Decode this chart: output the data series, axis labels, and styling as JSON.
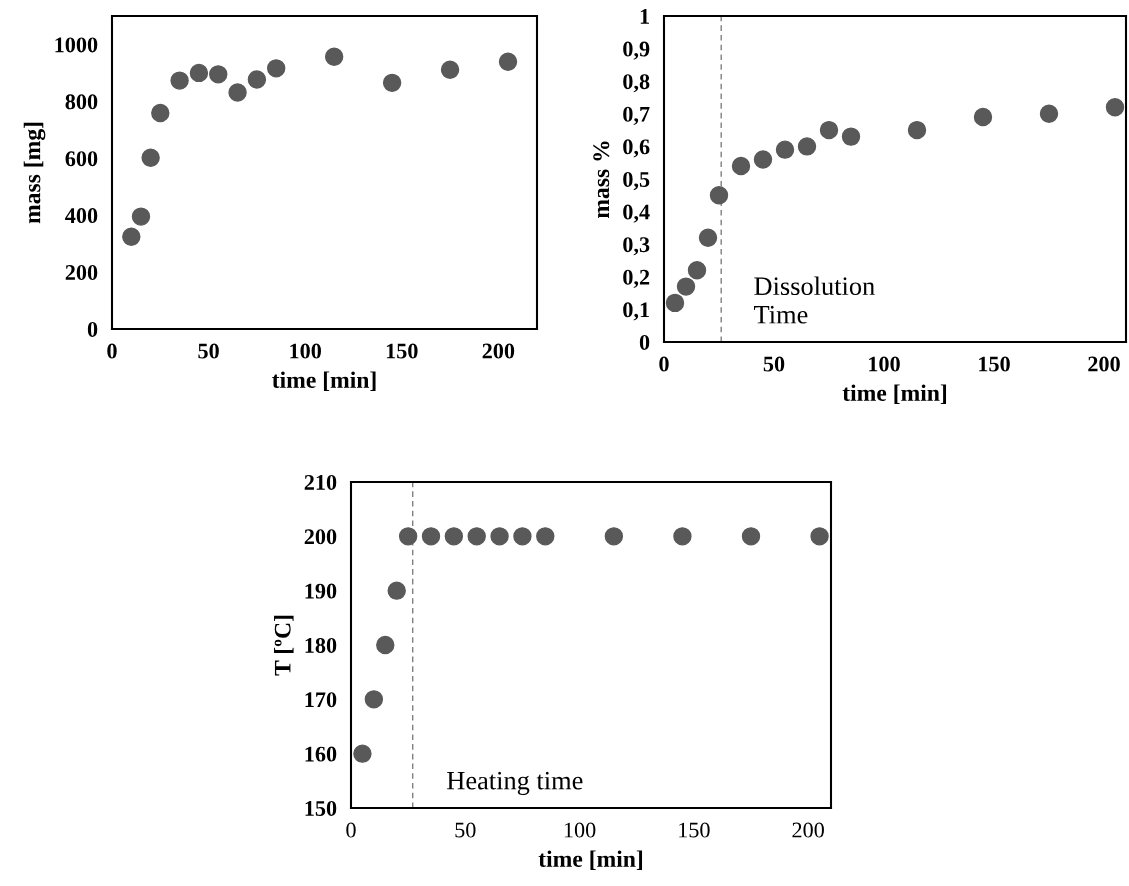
{
  "chart_data": [
    {
      "type": "scatter",
      "xlabel": "time [min]",
      "ylabel": "mass [mg]",
      "xlim": [
        0,
        220
      ],
      "ylim": [
        0,
        1100
      ],
      "xticks": [
        0,
        50,
        100,
        150,
        200
      ],
      "yticks": [
        0,
        200,
        400,
        600,
        800,
        1000
      ],
      "grid": false,
      "marker": "circle",
      "x": [
        10,
        15,
        20,
        25,
        35,
        45,
        55,
        65,
        75,
        85,
        115,
        145,
        175,
        205
      ],
      "series": [
        {
          "color": "#595959",
          "values": [
            324,
            395,
            602,
            759,
            873,
            900,
            895,
            831,
            877,
            916,
            957,
            865,
            911,
            939
          ]
        }
      ]
    },
    {
      "type": "scatter",
      "xlabel": "time [min]",
      "ylabel": "mass %",
      "xlim": [
        0,
        210
      ],
      "ylim": [
        0,
        1
      ],
      "xticks": [
        0,
        50,
        100,
        150,
        200
      ],
      "yticks": [
        0,
        {
          "value": 0.1,
          "label": "0,1"
        },
        {
          "value": 0.2,
          "label": "0,2"
        },
        {
          "value": 0.3,
          "label": "0,3"
        },
        {
          "value": 0.4,
          "label": "0,4"
        },
        {
          "value": 0.5,
          "label": "0,5"
        },
        {
          "value": 0.6,
          "label": "0,6"
        },
        {
          "value": 0.7,
          "label": "0,7"
        },
        {
          "value": 0.8,
          "label": "0,8"
        },
        {
          "value": 0.9,
          "label": "0,9"
        },
        1
      ],
      "grid": false,
      "marker": "circle",
      "x": [
        5,
        10,
        15,
        20,
        25,
        35,
        45,
        55,
        65,
        75,
        85,
        115,
        145,
        175,
        205
      ],
      "series": [
        {
          "color": "#595959",
          "values": [
            0.12,
            0.17,
            0.22,
            0.32,
            0.45,
            0.54,
            0.56,
            0.59,
            0.6,
            0.65,
            0.63,
            0.65,
            0.69,
            0.7,
            0.72
          ]
        }
      ],
      "ref_lines": [
        {
          "axis": "x",
          "value": 26,
          "label": "Dissolution\nTime",
          "color": "#7f7f7f",
          "line_style": "dashed"
        }
      ]
    },
    {
      "type": "scatter",
      "xlabel": "time [min]",
      "ylabel": "T [ºC]",
      "xlim": [
        0,
        210
      ],
      "ylim": [
        150,
        210
      ],
      "xticks": [
        0,
        50,
        100,
        150,
        200
      ],
      "yticks": [
        150,
        160,
        170,
        180,
        190,
        200,
        210
      ],
      "grid": false,
      "marker": "circle",
      "x": [
        5,
        10,
        15,
        20,
        25,
        35,
        45,
        55,
        65,
        75,
        85,
        115,
        145,
        175,
        205
      ],
      "series": [
        {
          "color": "#595959",
          "values": [
            160,
            170,
            180,
            190,
            200,
            200,
            200,
            200,
            200,
            200,
            200,
            200,
            200,
            200,
            200
          ]
        }
      ],
      "ref_lines": [
        {
          "axis": "x",
          "value": 27,
          "label": "Heating time",
          "color": "#7f7f7f",
          "line_style": "dashed"
        }
      ]
    }
  ]
}
